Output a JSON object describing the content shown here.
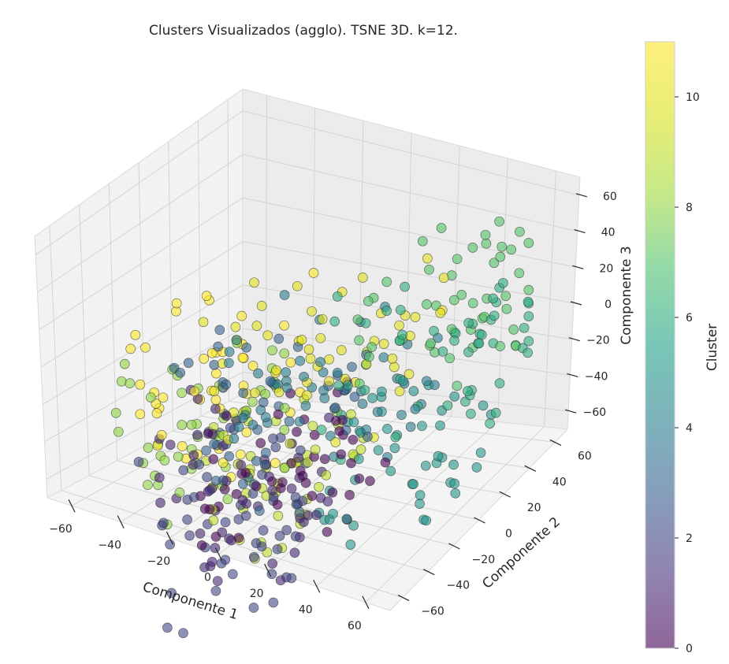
{
  "chart_data": {
    "type": "scatter",
    "projection": "3d",
    "title": "Clusters Visualizados (agglo). TSNE 3D. k=12.",
    "xlabel": "Componente 1",
    "ylabel": "Componente 2",
    "zlabel": "Componente 3",
    "xlim": [
      -70,
      70
    ],
    "ylim": [
      -70,
      70
    ],
    "zlim": [
      -70,
      70
    ],
    "x_ticks": [
      "−60",
      "−40",
      "−20",
      "0",
      "20",
      "40",
      "60"
    ],
    "y_ticks": [
      "−60",
      "−40",
      "−20",
      "0",
      "20",
      "40",
      "60"
    ],
    "z_ticks": [
      "−60",
      "−40",
      "−20",
      "0",
      "20",
      "40",
      "60"
    ],
    "grid": true,
    "colormap": "viridis",
    "point_alpha": 0.6,
    "colorbar": {
      "label": "Cluster",
      "min": 0,
      "max": 11,
      "ticks": [
        "0",
        "2",
        "4",
        "6",
        "8",
        "10"
      ]
    },
    "n_points": 600,
    "n_clusters": 12
  },
  "colors": {
    "pane": "#f2f2f2",
    "grid": "#d4d4d4",
    "text": "#262626"
  }
}
